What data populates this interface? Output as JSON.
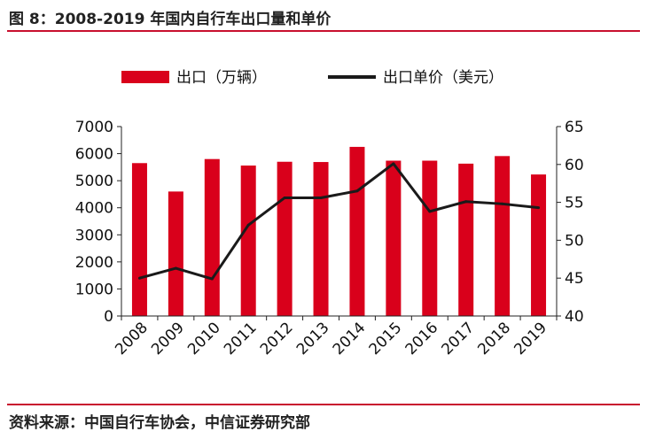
{
  "figure_title": "图 8：2008-2019 年国内自行车出口量和单价",
  "source": "资料来源：中国自行车协会，中信证券研究部",
  "colors": {
    "bar": "#d9001b",
    "line": "#1a1a1a",
    "accent_rule": "#c8102e"
  },
  "chart_data": {
    "type": "bar+line",
    "categories": [
      "2008",
      "2009",
      "2010",
      "2011",
      "2012",
      "2013",
      "2014",
      "2015",
      "2016",
      "2017",
      "2018",
      "2019"
    ],
    "series": [
      {
        "name": "出口（万辆）",
        "type": "bar",
        "axis": "left",
        "values": [
          5650,
          4600,
          5800,
          5560,
          5700,
          5690,
          6250,
          5740,
          5740,
          5630,
          5910,
          5230
        ]
      },
      {
        "name": "出口单价（美元）",
        "type": "line",
        "axis": "right",
        "values": [
          45.0,
          46.3,
          44.9,
          52.0,
          55.6,
          55.6,
          56.5,
          60.1,
          53.8,
          55.1,
          54.8,
          54.3
        ]
      }
    ],
    "y_left": {
      "ylim": [
        0,
        7000
      ],
      "ticks": [
        0,
        1000,
        2000,
        3000,
        4000,
        5000,
        6000,
        7000
      ]
    },
    "y_right": {
      "ylim": [
        40,
        65
      ],
      "ticks": [
        40,
        45,
        50,
        55,
        60,
        65
      ]
    },
    "legend_position": "top",
    "grid": false
  }
}
